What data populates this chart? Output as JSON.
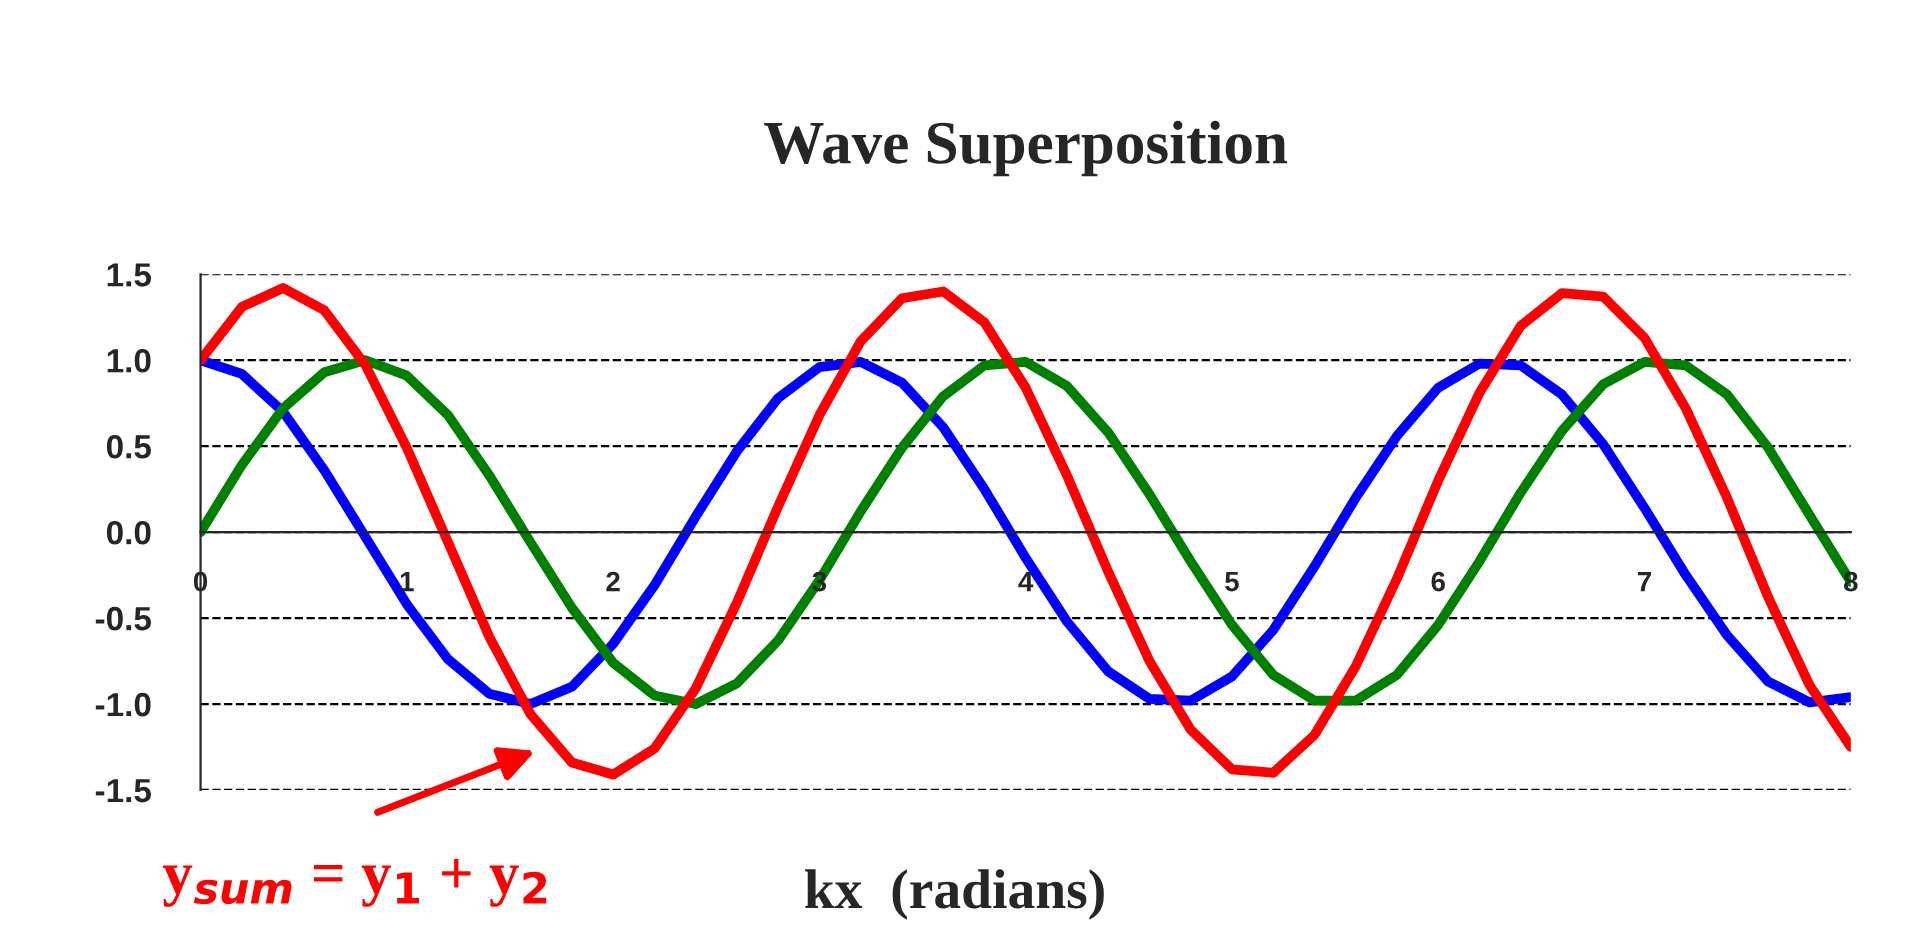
{
  "chart_data": {
    "type": "line",
    "title": "Wave Superposition",
    "xlabel": "kx  (radians)",
    "x": [
      0,
      0.2,
      0.4,
      0.6,
      0.8,
      1.0,
      1.2,
      1.4,
      1.6,
      1.8,
      2.0,
      2.2,
      2.4,
      2.6,
      2.8,
      3.0,
      3.2,
      3.4,
      3.6,
      3.8,
      4.0,
      4.2,
      4.4,
      4.6,
      4.8,
      5.0,
      5.2,
      5.4,
      5.6,
      5.8,
      6.0,
      6.2,
      6.4,
      6.6,
      6.8,
      7.0,
      7.2,
      7.4,
      7.6,
      7.8,
      8.0
    ],
    "series": [
      {
        "color": "#0000ff",
        "values": [
          1,
          0.92,
          0.7,
          0.36,
          -0.03,
          -0.42,
          -0.74,
          -0.94,
          -1.0,
          -0.9,
          -0.65,
          -0.31,
          0.09,
          0.47,
          0.78,
          0.96,
          0.99,
          0.87,
          0.61,
          0.25,
          -0.15,
          -0.52,
          -0.81,
          -0.97,
          -0.98,
          -0.84,
          -0.57,
          -0.2,
          0.2,
          0.56,
          0.84,
          0.98,
          0.97,
          0.8,
          0.51,
          0.14,
          -0.25,
          -0.6,
          -0.87,
          -0.99,
          -0.96
        ]
      },
      {
        "color": "#008000",
        "values": [
          0,
          0.39,
          0.72,
          0.93,
          1.0,
          0.91,
          0.68,
          0.33,
          -0.06,
          -0.44,
          -0.76,
          -0.95,
          -1.0,
          -0.88,
          -0.63,
          -0.28,
          0.12,
          0.49,
          0.79,
          0.97,
          0.99,
          0.85,
          0.58,
          0.22,
          -0.17,
          -0.54,
          -0.83,
          -0.98,
          -0.98,
          -0.83,
          -0.54,
          -0.17,
          0.23,
          0.59,
          0.86,
          0.99,
          0.97,
          0.8,
          0.49,
          0.1,
          -0.29
        ]
      },
      {
        "color": "#ff0000",
        "values": [
          1,
          1.31,
          1.42,
          1.29,
          0.97,
          0.49,
          -0.06,
          -0.61,
          -1.06,
          -1.34,
          -1.41,
          -1.26,
          -0.91,
          -0.41,
          0.15,
          0.68,
          1.11,
          1.36,
          1.4,
          1.22,
          0.84,
          0.33,
          -0.23,
          -0.75,
          -1.15,
          -1.38,
          -1.4,
          -1.18,
          -0.78,
          -0.27,
          0.3,
          0.81,
          1.2,
          1.39,
          1.37,
          1.13,
          0.72,
          0.2,
          -0.38,
          -0.89,
          -1.25
        ]
      }
    ],
    "xlim": [
      0,
      8
    ],
    "xticks": [
      0,
      1,
      2,
      3,
      4,
      5,
      6,
      7,
      8
    ],
    "ylim": [
      -1.5,
      1.5
    ],
    "yticks": [
      {
        "value": -1.5,
        "label": "-1.5"
      },
      {
        "value": -1.0,
        "label": "-1.0"
      },
      {
        "value": -0.5,
        "label": "-0.5"
      },
      {
        "value": 0.0,
        "label": "0.0"
      },
      {
        "value": 0.5,
        "label": "0.5"
      },
      {
        "value": 1.0,
        "label": "1.0"
      },
      {
        "value": 1.5,
        "label": "1.5"
      }
    ],
    "grid": "y",
    "marker": "none",
    "line_style": "solid",
    "legend": false,
    "annotations": [
      "y$_{sum}$ = y$_{1}$ + y$_{2}$"
    ]
  }
}
